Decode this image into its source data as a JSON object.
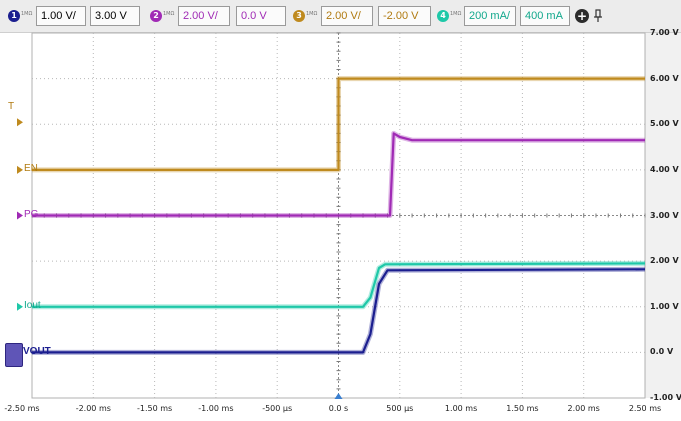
{
  "toolbar": {
    "channels": [
      {
        "num": "1",
        "sub": "1MΩ",
        "scale": "1.00 V/",
        "offset": "3.00 V",
        "color": "#1b1e8f"
      },
      {
        "num": "2",
        "sub": "1MΩ",
        "scale": "2.00 V/",
        "offset": "0.0 V",
        "color": "#a02ab5"
      },
      {
        "num": "3",
        "sub": "1MΩ",
        "scale": "2.00 V/",
        "offset": "-2.00 V",
        "color": "#bf8a1e"
      },
      {
        "num": "4",
        "sub": "1MΩ",
        "scale": "200 mA/",
        "offset": "400 mA",
        "color": "#1ec8a8"
      }
    ],
    "add_label": "+"
  },
  "scope": {
    "right_axis_labels": [
      "7.00 V",
      "6.00 V",
      "5.00 V",
      "4.00 V",
      "3.00 V",
      "2.00 V",
      "1.00 V",
      "0.0 V",
      "-1.00 V"
    ],
    "time_labels": [
      "-2.50 ms",
      "-2.00 ms",
      "-1.50 ms",
      "-1.00 ms",
      "-500 µs",
      "0.0 s",
      "500 µs",
      "1.00 ms",
      "1.50 ms",
      "2.00 ms",
      "2.50 ms"
    ],
    "trigger_marker": "T",
    "channel_labels": {
      "en": "EN",
      "pg": "PG",
      "iout": "Iout",
      "vout": "VOUT"
    }
  },
  "chart_data": {
    "type": "line",
    "xlabel": "",
    "ylabel": "",
    "xlim": [
      -2.5,
      2.5
    ],
    "ylim": [
      -1,
      7
    ],
    "grid": true,
    "x_unit": "ms",
    "series": [
      {
        "name": "EN",
        "color": "#bf8a1e",
        "x": [
          -2.5,
          0.0,
          0.0,
          2.5
        ],
        "y": [
          4.0,
          4.0,
          6.0,
          6.0
        ]
      },
      {
        "name": "PG",
        "color": "#a02ab5",
        "x": [
          -2.5,
          0.42,
          0.45,
          0.5,
          0.6,
          2.5
        ],
        "y": [
          3.0,
          3.0,
          4.8,
          4.72,
          4.65,
          4.65
        ]
      },
      {
        "name": "Iout",
        "color": "#1ec8a8",
        "x": [
          -2.5,
          0.2,
          0.26,
          0.33,
          0.38,
          2.5
        ],
        "y": [
          1.0,
          1.0,
          1.2,
          1.85,
          1.93,
          1.95
        ]
      },
      {
        "name": "VOUT",
        "color": "#1b1e8f",
        "x": [
          -2.5,
          0.2,
          0.26,
          0.33,
          0.4,
          2.5
        ],
        "y": [
          0.0,
          0.0,
          0.4,
          1.5,
          1.8,
          1.82
        ]
      }
    ]
  }
}
